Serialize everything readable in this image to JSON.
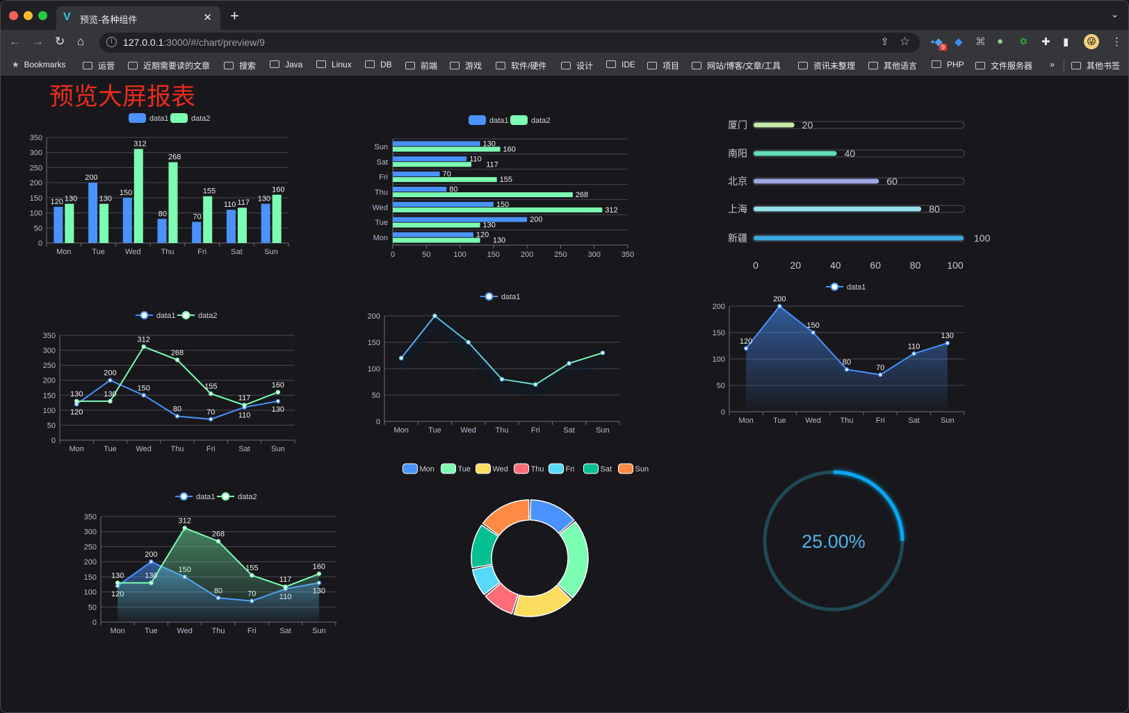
{
  "browser": {
    "tab_title": "预览-各种组件",
    "url_host": "127.0.0.1",
    "url_rest": ":3000/#/chart/preview/9",
    "bookmarks_label": "Bookmarks",
    "bookmarks": [
      "运营",
      "近期需要读的文章",
      "搜索",
      "Java",
      "Linux",
      "DB",
      "前端",
      "游戏",
      "软件/硬件",
      "设计",
      "IDE",
      "项目",
      "网站/博客/文章/工具",
      "资讯未整理",
      "其他语言",
      "PHP",
      "文件服务器"
    ],
    "more_bookmarks": "»",
    "other_bookmarks": "其他书签",
    "extension_badge": "9"
  },
  "page": {
    "title": "预览大屏报表"
  },
  "colors": {
    "data1": "#4992ff",
    "data2": "#7cffb2",
    "title": "#ec2b1d",
    "gauge": "#0aa5f0",
    "gauge_track": "#1f4a56"
  },
  "chart_data": [
    {
      "type": "bar",
      "categories": [
        "Mon",
        "Tue",
        "Wed",
        "Thu",
        "Fri",
        "Sat",
        "Sun"
      ],
      "series": [
        {
          "name": "data1",
          "values": [
            120,
            200,
            150,
            80,
            70,
            110,
            130
          ]
        },
        {
          "name": "data2",
          "values": [
            130,
            130,
            312,
            268,
            155,
            117,
            160
          ]
        }
      ],
      "ylim": [
        0,
        350
      ],
      "ystep": 50,
      "legend": "top",
      "data_labels": true
    },
    {
      "type": "bar",
      "orientation": "horizontal",
      "categories": [
        "Mon",
        "Tue",
        "Wed",
        "Thu",
        "Fri",
        "Sat",
        "Sun"
      ],
      "series": [
        {
          "name": "data1",
          "values": [
            120,
            200,
            150,
            80,
            70,
            110,
            130
          ]
        },
        {
          "name": "data2",
          "values": [
            130,
            130,
            312,
            268,
            155,
            117,
            160
          ]
        }
      ],
      "xlim": [
        0,
        350
      ],
      "xstep": 50,
      "legend": "top",
      "data_labels": true
    },
    {
      "type": "bar",
      "orientation": "horizontal",
      "style": "progress",
      "categories": [
        "厦门",
        "南阳",
        "北京",
        "上海",
        "新疆"
      ],
      "values": [
        20,
        40,
        60,
        80,
        100
      ],
      "colors": [
        "#c7eaa8",
        "#5fe0b4",
        "#a0a7e6",
        "#96e2ec",
        "#3aa9e0"
      ],
      "xlim": [
        0,
        100
      ],
      "xticks": [
        0,
        20,
        40,
        60,
        80,
        100
      ],
      "data_labels": true
    },
    {
      "type": "line",
      "categories": [
        "Mon",
        "Tue",
        "Wed",
        "Thu",
        "Fri",
        "Sat",
        "Sun"
      ],
      "series": [
        {
          "name": "data1",
          "values": [
            120,
            200,
            150,
            80,
            70,
            110,
            130
          ]
        },
        {
          "name": "data2",
          "values": [
            130,
            130,
            312,
            268,
            155,
            117,
            160
          ]
        }
      ],
      "ylim": [
        0,
        350
      ],
      "ystep": 50,
      "legend": "top",
      "data_labels": true
    },
    {
      "type": "line",
      "categories": [
        "Mon",
        "Tue",
        "Wed",
        "Thu",
        "Fri",
        "Sat",
        "Sun"
      ],
      "series": [
        {
          "name": "data1",
          "values": [
            120,
            200,
            150,
            80,
            70,
            110,
            130
          ]
        }
      ],
      "ylim": [
        0,
        200
      ],
      "ystep": 50,
      "legend": "top",
      "data_labels": false,
      "line_gradient": [
        "#4fa8f5",
        "#7cffb2"
      ]
    },
    {
      "type": "area",
      "categories": [
        "Mon",
        "Tue",
        "Wed",
        "Thu",
        "Fri",
        "Sat",
        "Sun"
      ],
      "series": [
        {
          "name": "data1",
          "values": [
            120,
            200,
            150,
            80,
            70,
            110,
            130
          ]
        }
      ],
      "ylim": [
        0,
        200
      ],
      "ystep": 50,
      "legend": "top",
      "data_labels": true
    },
    {
      "type": "area",
      "categories": [
        "Mon",
        "Tue",
        "Wed",
        "Thu",
        "Fri",
        "Sat",
        "Sun"
      ],
      "series": [
        {
          "name": "data1",
          "values": [
            120,
            200,
            150,
            80,
            70,
            110,
            130
          ]
        },
        {
          "name": "data2",
          "values": [
            130,
            130,
            312,
            268,
            155,
            117,
            160
          ]
        }
      ],
      "ylim": [
        0,
        350
      ],
      "ystep": 50,
      "legend": "top",
      "data_labels": true
    },
    {
      "type": "pie",
      "style": "donut",
      "categories": [
        "Mon",
        "Tue",
        "Wed",
        "Thu",
        "Fri",
        "Sat",
        "Sun"
      ],
      "values": [
        120,
        200,
        150,
        80,
        70,
        110,
        130
      ],
      "colors": [
        "#4992ff",
        "#7cffb2",
        "#fddd60",
        "#ff6e76",
        "#58d9f9",
        "#05c091",
        "#ff8a45"
      ],
      "legend": "top"
    },
    {
      "type": "gauge",
      "value": 0.25,
      "label": "25.00%"
    }
  ]
}
